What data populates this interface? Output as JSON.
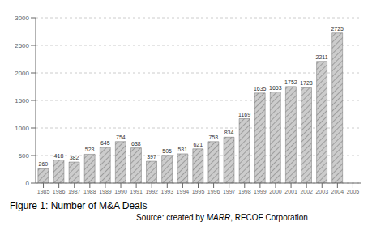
{
  "chart_data": {
    "type": "bar",
    "title": "Figure 1: Number of M&A Deals",
    "annotations": [
      {
        "text": "Source: created by ",
        "italic": false
      },
      {
        "text": "MARR",
        "italic": true
      },
      {
        "text": ", RECOF Corporation",
        "italic": false
      }
    ],
    "categories": [
      "1985",
      "1986",
      "1987",
      "1988",
      "1989",
      "1990",
      "1991",
      "1992",
      "1993",
      "1994",
      "1995",
      "1996",
      "1997",
      "1998",
      "1999",
      "2000",
      "2001",
      "2002",
      "2003",
      "2004",
      "2005"
    ],
    "values": [
      260,
      418,
      382,
      523,
      645,
      754,
      638,
      397,
      505,
      531,
      621,
      753,
      834,
      1169,
      1635,
      1653,
      1752,
      1728,
      2211,
      2725,
      null
    ],
    "color": "#cccccc",
    "ylim": [
      0,
      3000
    ],
    "yticks": [
      0,
      500,
      1000,
      1500,
      2000,
      2500,
      3000
    ],
    "grid": true,
    "data_labels": true
  }
}
